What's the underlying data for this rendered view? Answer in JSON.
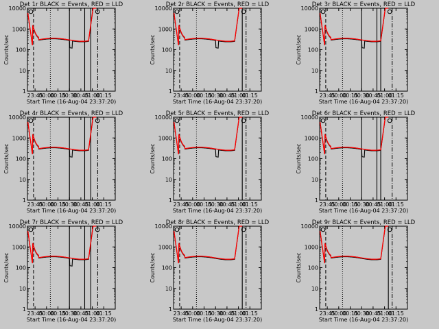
{
  "background": "#c8c8c8",
  "series_colors": {
    "black": "#000000",
    "red": "#ff0000"
  },
  "chart_data": [
    {
      "type": "line",
      "panel": "det1",
      "title": "Det 1r BLACK = Events, RED = LLD",
      "xlabel": "Start Time (16-Aug-04 23:37:20)",
      "ylabel": "Counts/sec",
      "ylim": [
        1,
        10000
      ],
      "y_scale": "log",
      "y_ticks": [
        "1",
        "10",
        "100",
        "1000",
        "10000"
      ],
      "xlim_minutes": [
        -10,
        105
      ],
      "x_ticks": [
        "23:45",
        "00:00",
        "00:15",
        "00:30",
        "00:45",
        "01:00",
        "01:15"
      ],
      "x_tick_minutes": [
        0,
        15,
        30,
        45,
        60,
        75,
        90
      ],
      "dip_minutes": [
        45,
        49
      ],
      "markers": {
        "dashed_left": -2,
        "dotted": 20,
        "solid": [
          45,
          65,
          73
        ],
        "dashdot_right": 82
      },
      "series": [
        {
          "name": "Events",
          "color": "#000000",
          "level": 320,
          "dip_to": 150
        },
        {
          "name": "LLD",
          "color": "#ff0000",
          "level": 340
        }
      ]
    },
    {
      "type": "line",
      "panel": "det2",
      "title": "Det 2r BLACK = Events, RED = LLD",
      "xlabel": "Start Time (16-Aug-04 23:37:20)",
      "ylabel": "Counts/sec",
      "ylim": [
        1,
        10000
      ],
      "y_scale": "log",
      "y_ticks": [
        "1",
        "10",
        "100",
        "1000",
        "10000"
      ],
      "xlim_minutes": [
        -10,
        105
      ],
      "x_ticks": [
        "23:45",
        "00:00",
        "00:15",
        "00:30",
        "00:45",
        "01:00",
        "01:15"
      ],
      "x_tick_minutes": [
        0,
        15,
        30,
        45,
        60,
        75,
        90
      ],
      "dip_minutes": [
        45,
        49
      ],
      "markers": {
        "dashed_left": -2,
        "dotted": 20,
        "solid": [
          80
        ],
        "dashdot_right": 85
      },
      "series": [
        {
          "name": "Events",
          "color": "#000000",
          "level": 320,
          "dip_to": 150
        },
        {
          "name": "LLD",
          "color": "#ff0000",
          "level": 340
        }
      ]
    },
    {
      "type": "line",
      "panel": "det3",
      "title": "Det 3r BLACK = Events, RED = LLD",
      "xlabel": "Start Time (16-Aug-04 23:37:20)",
      "ylabel": "Counts/sec",
      "ylim": [
        1,
        10000
      ],
      "y_scale": "log",
      "y_ticks": [
        "1",
        "10",
        "100",
        "1000",
        "10000"
      ],
      "xlim_minutes": [
        -10,
        105
      ],
      "x_ticks": [
        "23:45",
        "00:00",
        "00:15",
        "00:30",
        "00:45",
        "01:00",
        "01:15"
      ],
      "x_tick_minutes": [
        0,
        15,
        30,
        45,
        60,
        75,
        90
      ],
      "dip_minutes": [
        45,
        49
      ],
      "markers": {
        "dashed_left": -2,
        "dotted": 20,
        "solid": [
          45,
          65,
          70
        ],
        "dashdot_right": 85
      },
      "series": [
        {
          "name": "Events",
          "color": "#000000",
          "level": 320,
          "dip_to": 150
        },
        {
          "name": "LLD",
          "color": "#ff0000",
          "level": 340
        }
      ]
    },
    {
      "type": "line",
      "panel": "det4",
      "title": "Det 4r BLACK = Events, RED = LLD",
      "xlabel": "Start Time (16-Aug-04 23:37:20)",
      "ylabel": "Counts/sec",
      "ylim": [
        1,
        10000
      ],
      "y_scale": "log",
      "y_ticks": [
        "1",
        "10",
        "100",
        "1000",
        "10000"
      ],
      "xlim_minutes": [
        -10,
        105
      ],
      "x_ticks": [
        "23:45",
        "00:00",
        "00:15",
        "00:30",
        "00:45",
        "01:00",
        "01:15"
      ],
      "x_tick_minutes": [
        0,
        15,
        30,
        45,
        60,
        75,
        90
      ],
      "dip_minutes": [
        45,
        49
      ],
      "markers": {
        "dashed_left": -2,
        "dotted": 20,
        "solid": [
          45,
          65,
          73
        ],
        "dashdot_right": 82
      },
      "series": [
        {
          "name": "Events",
          "color": "#000000",
          "level": 320,
          "dip_to": 150
        },
        {
          "name": "LLD",
          "color": "#ff0000",
          "level": 340
        }
      ]
    },
    {
      "type": "line",
      "panel": "det5",
      "title": "Det 5r BLACK = Events, RED = LLD",
      "xlabel": "Start Time (16-Aug-04 23:37:20)",
      "ylabel": "Counts/sec",
      "ylim": [
        1,
        10000
      ],
      "y_scale": "log",
      "y_ticks": [
        "1",
        "10",
        "100",
        "1000",
        "10000"
      ],
      "xlim_minutes": [
        -10,
        105
      ],
      "x_ticks": [
        "23:45",
        "00:00",
        "00:15",
        "00:30",
        "00:45",
        "01:00",
        "01:15"
      ],
      "x_tick_minutes": [
        0,
        15,
        30,
        45,
        60,
        75,
        90
      ],
      "dip_minutes": [
        45,
        49
      ],
      "markers": {
        "dashed_left": -2,
        "dotted": 20,
        "solid": [
          80
        ],
        "dashdot_right": 85
      },
      "series": [
        {
          "name": "Events",
          "color": "#000000",
          "level": 320,
          "dip_to": 150
        },
        {
          "name": "LLD",
          "color": "#ff0000",
          "level": 340
        }
      ]
    },
    {
      "type": "line",
      "panel": "det6",
      "title": "Det 6r BLACK = Events, RED = LLD",
      "xlabel": "Start Time (16-Aug-04 23:37:20)",
      "ylabel": "Counts/sec",
      "ylim": [
        1,
        10000
      ],
      "y_scale": "log",
      "y_ticks": [
        "1",
        "10",
        "100",
        "1000",
        "10000"
      ],
      "xlim_minutes": [
        -10,
        105
      ],
      "x_ticks": [
        "23:45",
        "00:00",
        "00:15",
        "00:30",
        "00:45",
        "01:00",
        "01:15"
      ],
      "x_tick_minutes": [
        0,
        15,
        30,
        45,
        60,
        75,
        90
      ],
      "dip_minutes": [
        45,
        49
      ],
      "markers": {
        "dashed_left": -2,
        "dotted": 20,
        "solid": [
          45,
          65,
          70
        ],
        "dashdot_right": 85
      },
      "series": [
        {
          "name": "Events",
          "color": "#000000",
          "level": 320,
          "dip_to": 150
        },
        {
          "name": "LLD",
          "color": "#ff0000",
          "level": 340
        }
      ]
    },
    {
      "type": "line",
      "panel": "det7",
      "title": "Det 7r BLACK = Events, RED = LLD",
      "xlabel": "Start Time (16-Aug-04 23:37:20)",
      "ylabel": "Counts/sec",
      "ylim": [
        1,
        10000
      ],
      "y_scale": "log",
      "y_ticks": [
        "1",
        "10",
        "100",
        "1000",
        "10000"
      ],
      "xlim_minutes": [
        -10,
        105
      ],
      "x_ticks": [
        "23:45",
        "00:00",
        "00:15",
        "00:30",
        "00:45",
        "01:00",
        "01:15"
      ],
      "x_tick_minutes": [
        0,
        15,
        30,
        45,
        60,
        75,
        90
      ],
      "dip_minutes": [
        45,
        49
      ],
      "markers": {
        "dashed_left": -2,
        "dotted": 20,
        "solid": [
          45,
          65,
          73
        ],
        "dashdot_right": 82
      },
      "series": [
        {
          "name": "Events",
          "color": "#000000",
          "level": 320,
          "dip_to": 150
        },
        {
          "name": "LLD",
          "color": "#ff0000",
          "level": 340
        }
      ]
    },
    {
      "type": "line",
      "panel": "det8",
      "title": "Det 8r BLACK = Events, RED = LLD",
      "xlabel": "Start Time (16-Aug-04 23:37:20)",
      "ylabel": "Counts/sec",
      "ylim": [
        1,
        10000
      ],
      "y_scale": "log",
      "y_ticks": [
        "1",
        "10",
        "100",
        "1000",
        "10000"
      ],
      "xlim_minutes": [
        -10,
        105
      ],
      "x_ticks": [
        "23:45",
        "00:00",
        "00:15",
        "00:30",
        "00:45",
        "01:00",
        "01:15"
      ],
      "x_tick_minutes": [
        0,
        15,
        30,
        45,
        60,
        75,
        90
      ],
      "dip_minutes": [],
      "markers": {
        "dashed_left": -2,
        "dotted": 20,
        "solid": [
          80
        ],
        "dashdot_right": 85
      },
      "series": [
        {
          "name": "Events",
          "color": "#000000",
          "level": 320,
          "dip_to": null
        },
        {
          "name": "LLD",
          "color": "#ff0000",
          "level": 340
        }
      ]
    },
    {
      "type": "line",
      "panel": "det9",
      "title": "Det 9r BLACK = Events, RED = LLD",
      "xlabel": "Start Time (16-Aug-04 23:37:20)",
      "ylabel": "Counts/sec",
      "ylim": [
        1,
        10000
      ],
      "y_scale": "log",
      "y_ticks": [
        "1",
        "10",
        "100",
        "1000",
        "10000"
      ],
      "xlim_minutes": [
        -10,
        105
      ],
      "x_ticks": [
        "23:45",
        "00:00",
        "00:15",
        "00:30",
        "00:45",
        "01:00",
        "01:15"
      ],
      "x_tick_minutes": [
        0,
        15,
        30,
        45,
        60,
        75,
        90
      ],
      "dip_minutes": [],
      "markers": {
        "dashed_left": -2,
        "dotted": 20,
        "solid": [
          80
        ],
        "dashdot_right": 85
      },
      "series": [
        {
          "name": "Events",
          "color": "#000000",
          "level": 320,
          "dip_to": null
        },
        {
          "name": "LLD",
          "color": "#ff0000",
          "level": 340
        }
      ]
    }
  ]
}
